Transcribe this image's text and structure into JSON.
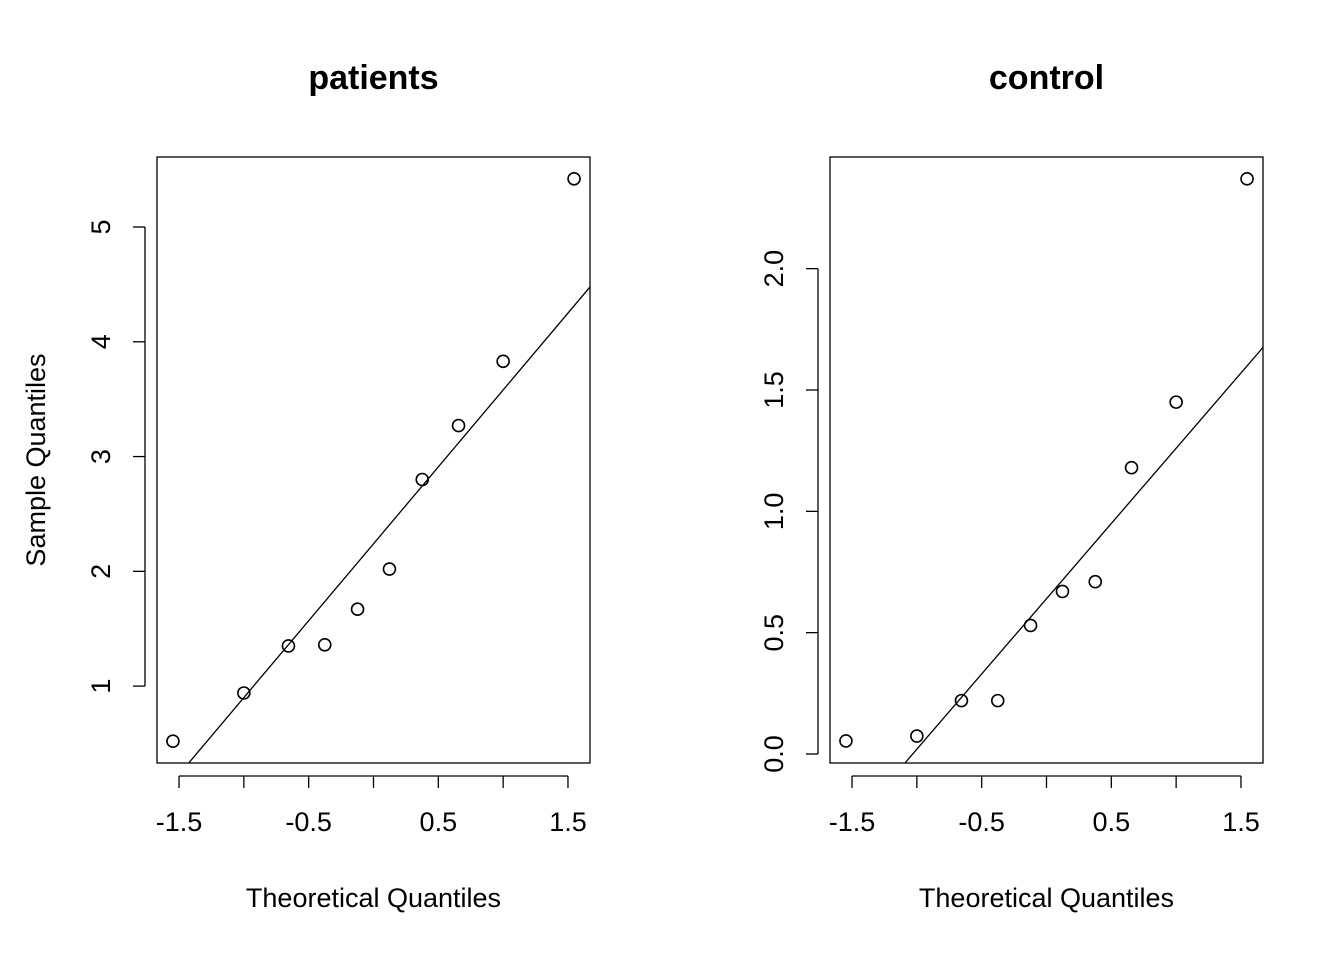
{
  "chart_data": [
    {
      "type": "scatter",
      "title": "patients",
      "xlabel": "Theoretical Quantiles",
      "ylabel": "Sample Quantiles",
      "x": [
        -1.547,
        -1.0,
        -0.656,
        -0.376,
        -0.123,
        0.123,
        0.376,
        0.656,
        1.0,
        1.547
      ],
      "values": [
        0.52,
        0.94,
        1.35,
        1.36,
        1.67,
        2.02,
        2.8,
        3.27,
        3.83,
        5.42
      ],
      "color": "#000000",
      "line": {
        "intercept": 2.24,
        "slope": 1.34
      },
      "xlim": [
        -1.67,
        1.67
      ],
      "xticks": [
        -1.5,
        -0.5,
        0.5,
        1.5
      ],
      "xminor_ticks": [
        -1,
        0,
        1
      ],
      "ylim": [
        0.33,
        5.61
      ],
      "yticks": [
        1,
        2,
        3,
        4,
        5
      ]
    },
    {
      "type": "scatter",
      "title": "control",
      "xlabel": "Theoretical Quantiles",
      "x": [
        -1.547,
        -1.0,
        -0.656,
        -0.376,
        -0.123,
        0.123,
        0.376,
        0.656,
        1.0,
        1.547
      ],
      "values": [
        0.054,
        0.074,
        0.22,
        0.22,
        0.53,
        0.67,
        0.71,
        1.18,
        1.45,
        2.37
      ],
      "color": "#000000",
      "line": {
        "intercept": 0.64,
        "slope": 0.62
      },
      "xlim": [
        -1.67,
        1.67
      ],
      "xticks": [
        -1.5,
        -0.5,
        0.5,
        1.5
      ],
      "xminor_ticks": [
        -1,
        0,
        1
      ],
      "ylim": [
        -0.037,
        2.46
      ],
      "yticks": [
        {
          "value": 0,
          "label": "0.0"
        },
        0.5,
        {
          "value": 1,
          "label": "1.0"
        },
        1.5,
        {
          "value": 2,
          "label": "2.0"
        }
      ]
    }
  ]
}
